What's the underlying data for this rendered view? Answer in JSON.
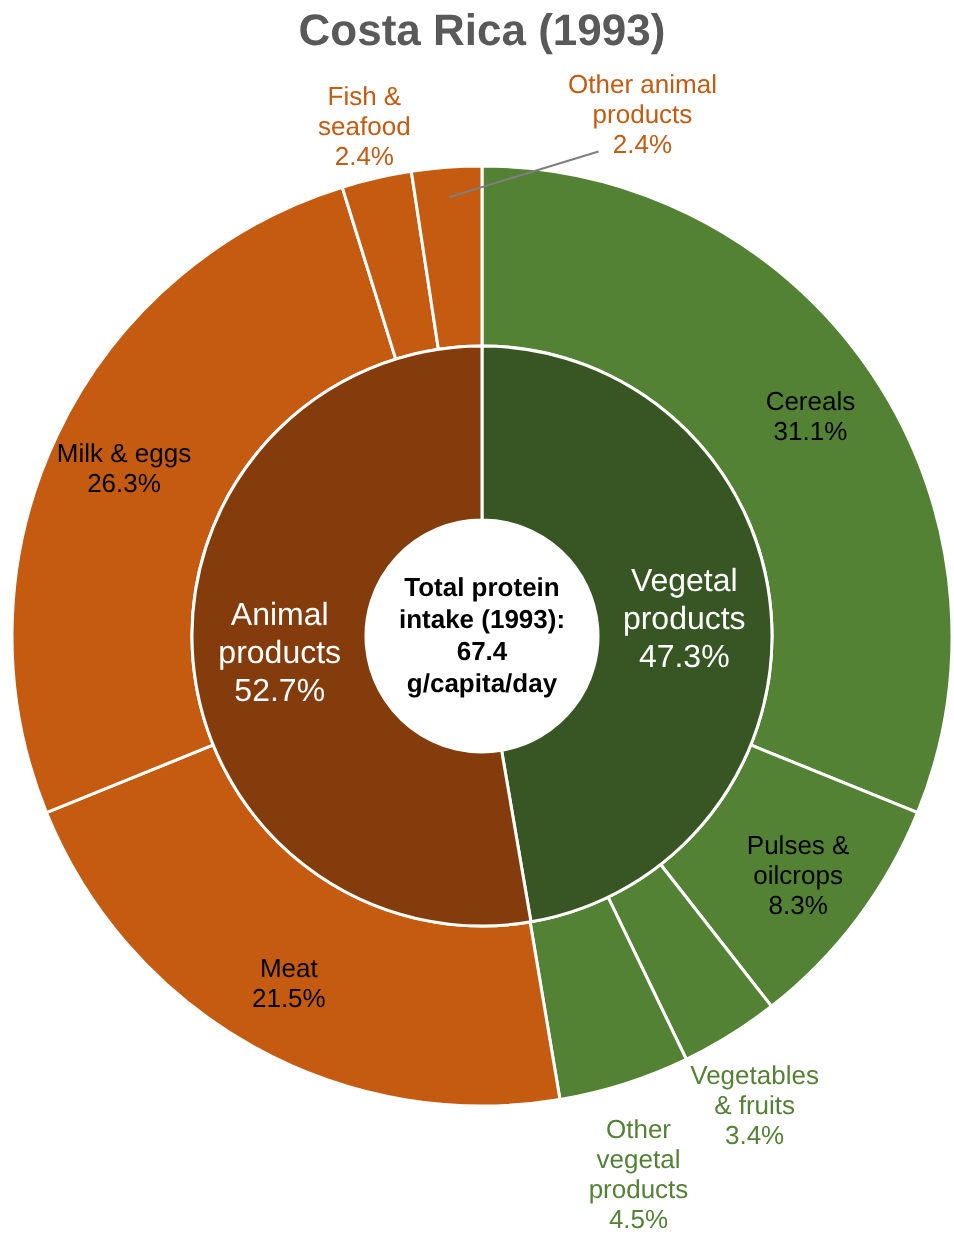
{
  "chart_data": [
    {
      "type": "donut",
      "title": "Costa Rica (1993)",
      "categories": [
        "Cereals",
        "Pulses & oilcrops",
        "Vegetables & fruits",
        "Other vegetal products",
        "Meat",
        "Milk & eggs",
        "Fish & seafood",
        "Other animal products"
      ],
      "values": [
        31.1,
        8.3,
        3.4,
        4.5,
        21.5,
        26.3,
        2.4,
        2.4
      ],
      "colors": [
        "#548235",
        "#548235",
        "#548235",
        "#548235",
        "#c55a11",
        "#c55a11",
        "#c55a11",
        "#c55a11"
      ],
      "value_labels": [
        "31.1%",
        "8.3%",
        "3.4%",
        "4.5%",
        "21.5%",
        "26.3%",
        "2.4%",
        "2.4%"
      ]
    },
    {
      "type": "donut",
      "categories": [
        "Vegetal products",
        "Animal products"
      ],
      "values": [
        47.3,
        52.7
      ],
      "colors": [
        "#375623",
        "#843c0c"
      ],
      "value_labels": [
        "47.3%",
        "52.7%"
      ],
      "annotations": [
        "Total protein intake (1993): 67.4 g/capita/day"
      ]
    }
  ]
}
